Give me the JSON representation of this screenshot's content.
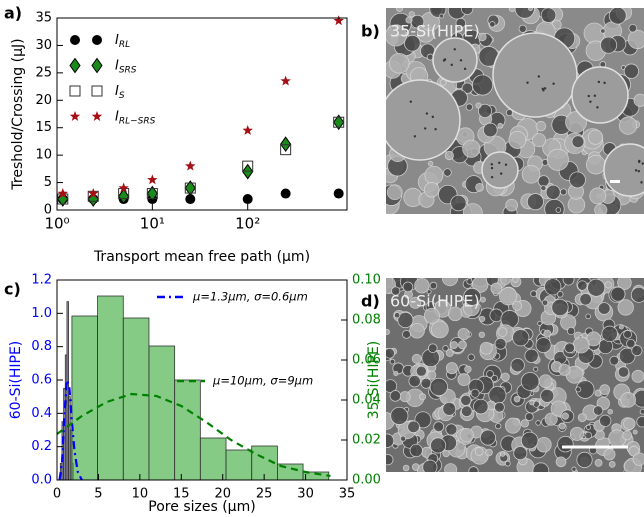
{
  "chart_data": [
    {
      "type": "scatter",
      "panel_label": "a)",
      "xlabel": "Transport mean free path (μm)",
      "ylabel": "Treshold/Crossing (μJ)",
      "xscale": "log",
      "xlim": [
        1,
        1100
      ],
      "xticks": [
        {
          "value": 1,
          "label": "10⁰"
        },
        {
          "value": 10,
          "label": "10¹"
        },
        {
          "value": 100,
          "label": "10²"
        }
      ],
      "ylim": [
        0,
        35
      ],
      "yticks": [
        0,
        5,
        10,
        15,
        20,
        25,
        30,
        35
      ],
      "legend": "upper left",
      "x": [
        1.15,
        2.4,
        5,
        10,
        25,
        100,
        250,
        900
      ],
      "series": [
        {
          "name": "IRL",
          "color": "#000000",
          "marker": "o",
          "filled": true,
          "values": [
            2,
            2,
            2,
            2,
            2,
            2,
            3,
            3
          ]
        },
        {
          "name": "ISRS",
          "color": "#1a8a1a",
          "marker": "D",
          "filled": true,
          "values": [
            2,
            2,
            2.5,
            3,
            4,
            7,
            12,
            16
          ]
        },
        {
          "name": "IS",
          "color": "#333333",
          "marker": "s",
          "filled": false,
          "values": [
            2,
            2.5,
            3,
            3,
            4,
            8,
            11,
            16
          ]
        },
        {
          "name": "IRL−SRS",
          "color": "#a50f15",
          "marker": "*",
          "filled": true,
          "values": [
            3,
            3,
            4,
            5.5,
            8,
            14.5,
            23.5,
            34.5
          ]
        }
      ]
    },
    {
      "type": "histogram",
      "panel_label": "c)",
      "xlabel": "Pore sizes (μm)",
      "ylabel": "60-Si(HIPE)",
      "y2label": "35-Si(HIPE)",
      "ycolor": "#0000ff",
      "y2color": "#008000",
      "xlim": [
        0,
        35
      ],
      "xticks": [
        0,
        5,
        10,
        15,
        20,
        25,
        30,
        35
      ],
      "ylim": [
        0,
        1.2
      ],
      "yticks": [
        {
          "value": 0,
          "label": "0.0"
        },
        0.2,
        0.4,
        0.6,
        0.8,
        {
          "value": 1,
          "label": "1.0"
        },
        1.2
      ],
      "y2lim": [
        0,
        0.1
      ],
      "y2ticks": [
        {
          "value": 0,
          "label": "0.00"
        },
        {
          "value": 0.02,
          "label": "0.02"
        },
        {
          "value": 0.04,
          "label": "0.04"
        },
        {
          "value": 0.06,
          "label": "0.06"
        },
        {
          "value": 0.08,
          "label": "0.08"
        },
        {
          "value": 0.1,
          "label": "0.10"
        }
      ],
      "series": [
        {
          "type": "hist",
          "color": "#7a7a9c",
          "axis": "y",
          "bins": [
            0.4,
            0.6,
            0.8,
            1.0,
            1.2,
            1.4,
            1.6,
            1.8,
            2.0
          ],
          "values": [
            0.1,
            0.35,
            0.55,
            0.75,
            1.07,
            0.5,
            0.3,
            0.1
          ]
        },
        {
          "type": "hist",
          "color": "#5cb85c",
          "axis": "y2",
          "bins": [
            1.8,
            4.9,
            8.0,
            11.1,
            14.2,
            17.3,
            20.4,
            23.5,
            26.6,
            29.7,
            32.8
          ],
          "values": [
            0.082,
            0.092,
            0.081,
            0.067,
            0.05,
            0.021,
            0.015,
            0.017,
            0.008,
            0.004
          ]
        },
        {
          "type": "line",
          "name": "μ=1.3μm, σ=0.6μm",
          "color": "#0000ff",
          "linestyle": "dashdot",
          "axis": "y",
          "x": [
            0.3,
            0.6,
            0.9,
            1.2,
            1.5,
            1.8,
            2.1,
            2.5,
            3.0
          ],
          "values": [
            0.0,
            0.1,
            0.4,
            0.6,
            0.55,
            0.35,
            0.18,
            0.05,
            0.0
          ]
        },
        {
          "type": "line",
          "name": "μ=10μm, σ=9μm",
          "color": "#008000",
          "linestyle": "dashed",
          "axis": "y2",
          "x": [
            0,
            3,
            6,
            9,
            12,
            15,
            18,
            21,
            24,
            27,
            30,
            33
          ],
          "values": [
            0.023,
            0.032,
            0.039,
            0.043,
            0.042,
            0.037,
            0.029,
            0.02,
            0.013,
            0.007,
            0.004,
            0.002
          ]
        }
      ]
    }
  ],
  "images": [
    {
      "panel_label": "b)",
      "label": "35-Si(HIPE)"
    },
    {
      "panel_label": "d)",
      "label": "60-Si(HIPE)"
    }
  ]
}
